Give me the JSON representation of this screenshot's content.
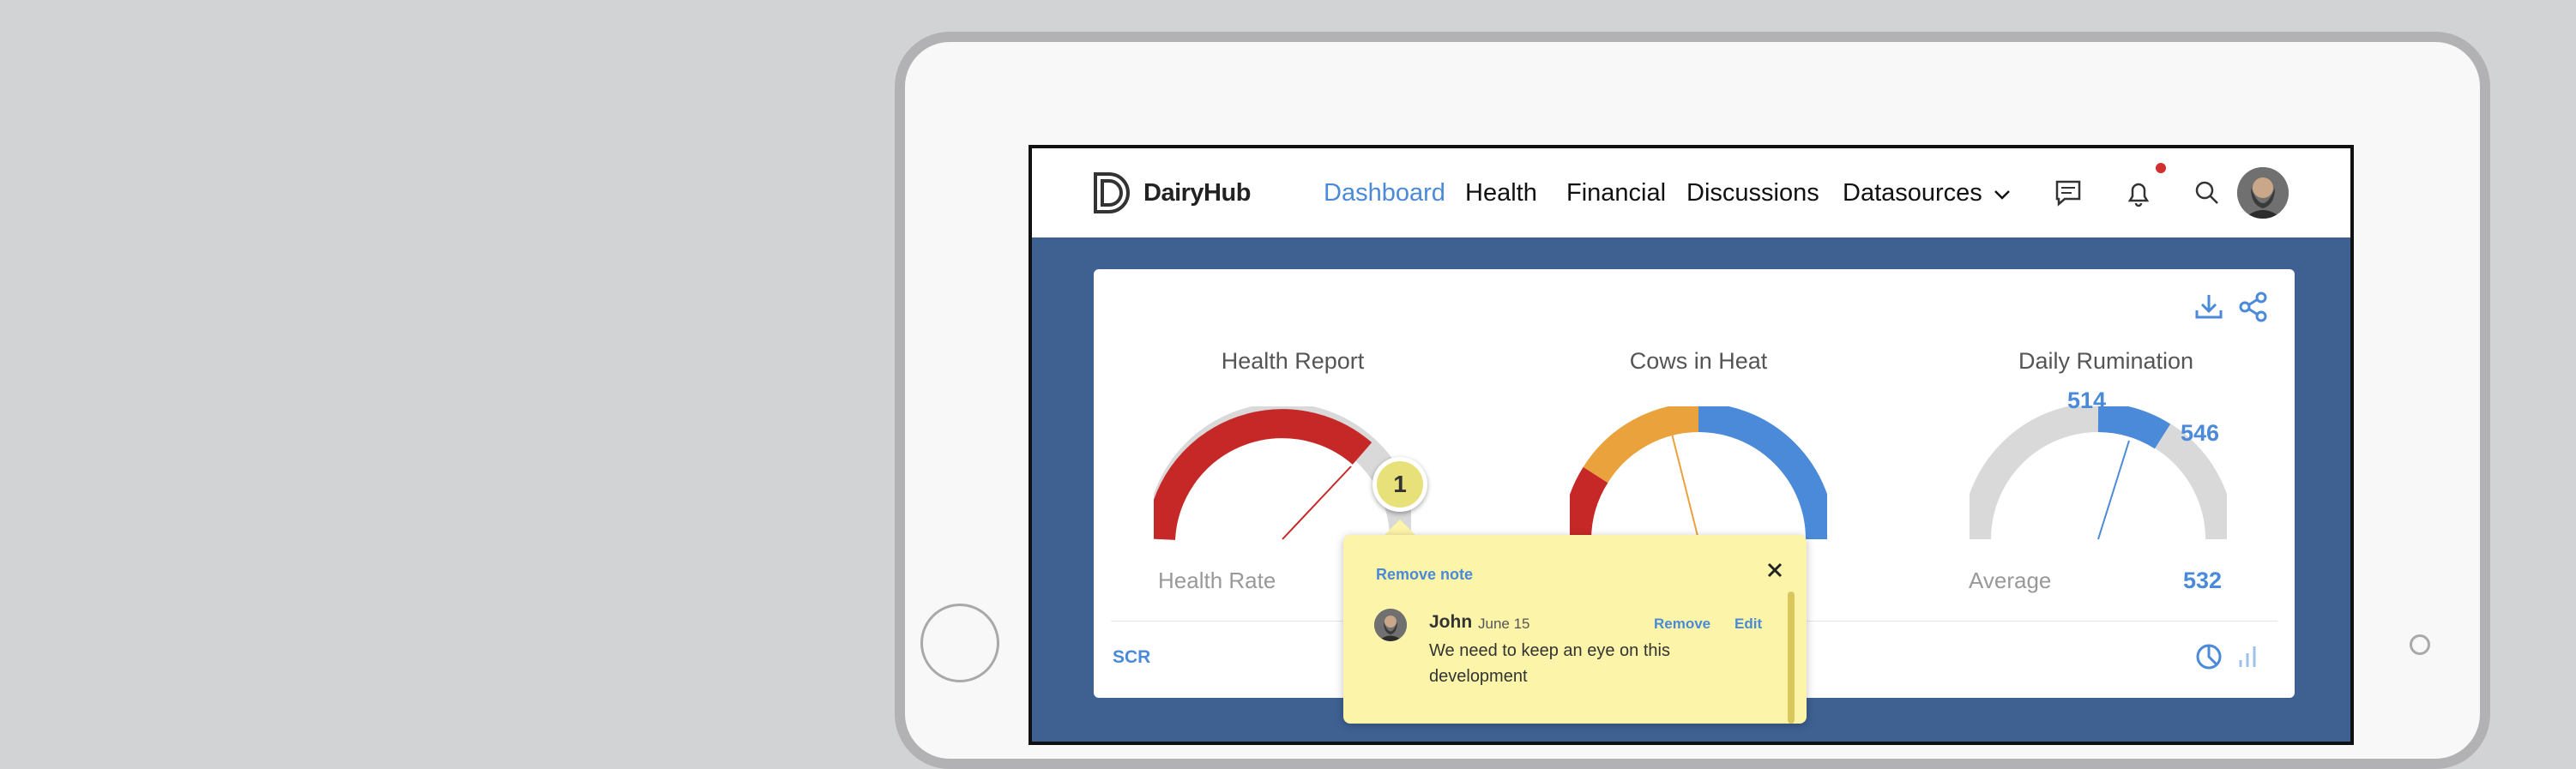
{
  "app": {
    "brand": "DairyHub",
    "nav": {
      "dashboard": "Dashboard",
      "health": "Health",
      "financial": "Financial",
      "discussions": "Discussions",
      "datasources": "Datasources"
    },
    "icons": [
      "chat-icon",
      "bell-icon",
      "search-icon",
      "avatar"
    ]
  },
  "dashboard": {
    "gauges": [
      {
        "title": "Health Report",
        "caption": "Health Rate"
      },
      {
        "title": "Cows in Heat",
        "caption": ""
      },
      {
        "title": "Daily Rumination",
        "caption": "Average",
        "min_label": "514",
        "max_label": "546",
        "value_label": "532"
      }
    ],
    "footer_label": "SCR"
  },
  "note": {
    "badge": "1",
    "remove_note": "Remove note",
    "author": "John",
    "date": "June 15",
    "remove": "Remove",
    "edit": "Edit",
    "text": "We need to keep an eye on this development"
  },
  "colors": {
    "accent": "#4a8ad8",
    "screen_bg": "#3e6192",
    "gauge_red": "#c62828",
    "gauge_orange": "#e9a23c",
    "gauge_blue": "#4a8ad8",
    "gauge_gray": "#d9d9d9",
    "note_bg": "#fbf4a9",
    "notification": "#d32f2f"
  }
}
